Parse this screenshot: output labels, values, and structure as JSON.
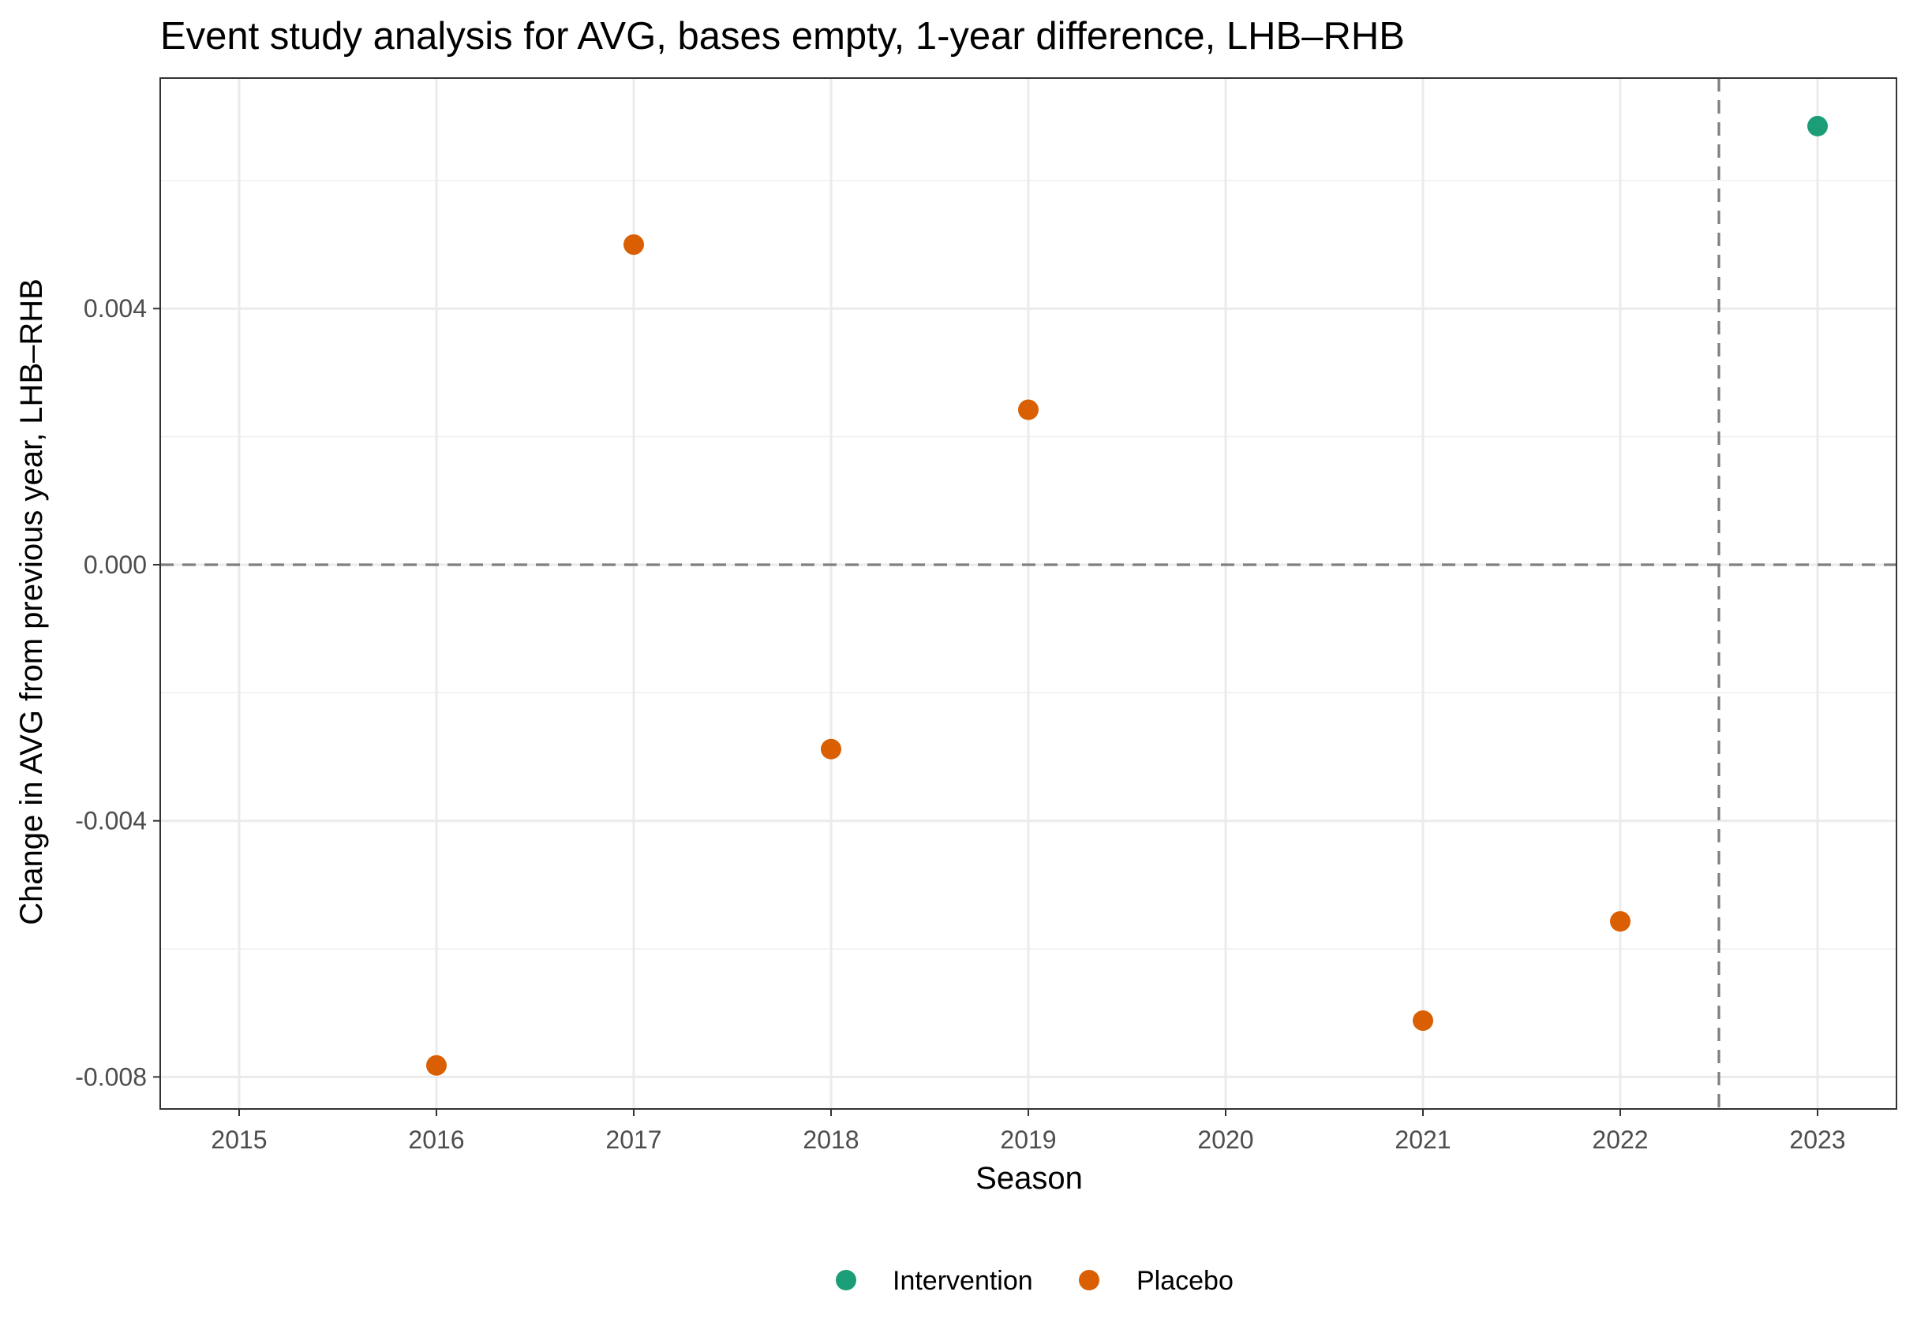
{
  "chart_data": {
    "type": "scatter",
    "title": "Event study analysis for AVG, bases empty, 1-year difference, LHB–RHB",
    "xlabel": "Season",
    "ylabel": "Change in AVG from previous year, LHB–RHB",
    "xlim": [
      2014.6,
      2023.4
    ],
    "ylim": [
      -0.0085,
      0.0076
    ],
    "x_ticks": [
      2015,
      2016,
      2017,
      2018,
      2019,
      2020,
      2021,
      2022,
      2023
    ],
    "x_tick_labels": [
      "2015",
      "2016",
      "2017",
      "2018",
      "2019",
      "2020",
      "2021",
      "2022",
      "2023"
    ],
    "y_ticks": [
      -0.008,
      -0.004,
      0.0,
      0.004
    ],
    "y_tick_labels": [
      "-0.008",
      "-0.004",
      "0.000",
      "0.004"
    ],
    "grid": true,
    "reference_lines": {
      "horizontal_y": 0.0,
      "vertical_x": 2022.5
    },
    "legend_position": "bottom",
    "series": [
      {
        "name": "Intervention",
        "color": "#1b9e77",
        "points": [
          {
            "x": 2023,
            "y": 0.00685
          }
        ]
      },
      {
        "name": "Placebo",
        "color": "#d95f02",
        "points": [
          {
            "x": 2016,
            "y": -0.00782
          },
          {
            "x": 2017,
            "y": 0.005
          },
          {
            "x": 2018,
            "y": -0.00288
          },
          {
            "x": 2019,
            "y": 0.00242
          },
          {
            "x": 2021,
            "y": -0.00712
          },
          {
            "x": 2022,
            "y": -0.00557
          }
        ]
      }
    ]
  }
}
